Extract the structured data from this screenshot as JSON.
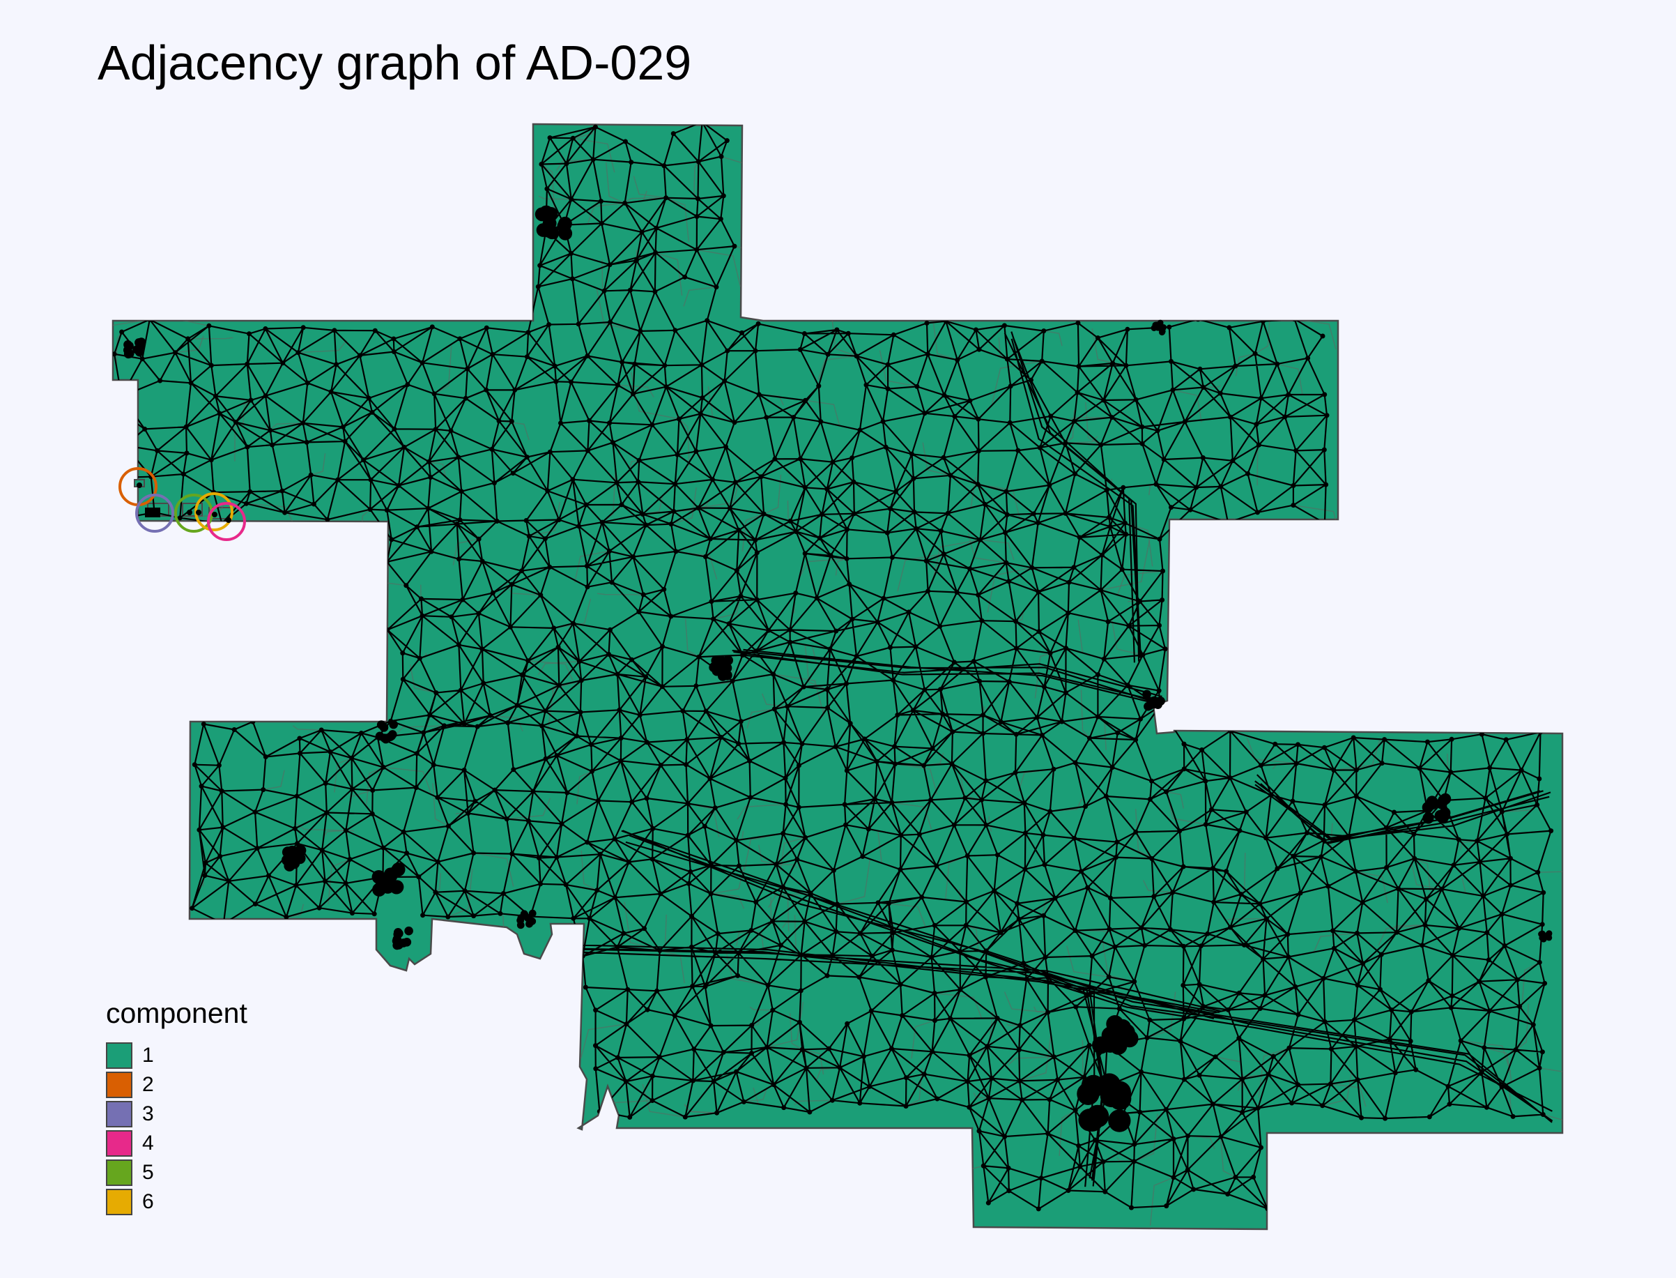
{
  "title": "Adjacency graph of AD-029",
  "colors": {
    "background": "#f5f6fe",
    "district_fill": "#1b9e77",
    "district_outline": "#4a4a4a",
    "edge": "#000000",
    "node": "#000000"
  },
  "legend": {
    "title": "component",
    "items": [
      {
        "label": "1",
        "color": "#1b9e77"
      },
      {
        "label": "2",
        "color": "#d95f02"
      },
      {
        "label": "3",
        "color": "#7570b3"
      },
      {
        "label": "4",
        "color": "#e7298a"
      },
      {
        "label": "5",
        "color": "#66a61e"
      },
      {
        "label": "6",
        "color": "#e6ab02"
      }
    ]
  },
  "components_highlighted": [
    {
      "component": "2",
      "color": "#d95f02"
    },
    {
      "component": "3",
      "color": "#7570b3"
    },
    {
      "component": "4",
      "color": "#e7298a"
    },
    {
      "component": "5",
      "color": "#66a61e"
    },
    {
      "component": "6",
      "color": "#e6ab02"
    }
  ]
}
